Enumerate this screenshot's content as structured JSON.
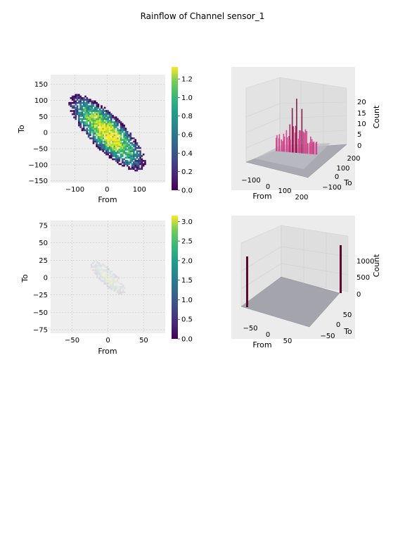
{
  "title": "Rainflow of Channel sensor_1",
  "chart_data": [
    {
      "type": "heatmap",
      "panel": "top-left",
      "xlabel": "From",
      "ylabel": "To",
      "xlim": [
        -175,
        180
      ],
      "ylim": [
        -155,
        180
      ],
      "xticks": [
        -100,
        0,
        100
      ],
      "yticks": [
        -150,
        -100,
        -50,
        0,
        50,
        100,
        150
      ],
      "grid": true,
      "colormap": "viridis",
      "colorbar": {
        "min": 0.0,
        "max": 1.33,
        "ticks": [
          "0.0",
          "0.2",
          "0.4",
          "0.6",
          "0.8",
          "1.0",
          "1.2"
        ]
      },
      "distribution": {
        "center": [
          0,
          0
        ],
        "diagonal_from": [
          -100,
          100
        ],
        "diagonal_to": [
          100,
          -100
        ],
        "cell": 5
      }
    },
    {
      "type": "surface3d",
      "panel": "top-right",
      "xlabel": "From",
      "ylabel": "To",
      "zlabel": "Count",
      "xticks": [
        -100,
        0,
        100,
        200
      ],
      "yticks": [
        -100,
        0,
        100,
        200
      ],
      "zticks": [
        0,
        5,
        10,
        15,
        20
      ],
      "zmax": 22
    },
    {
      "type": "heatmap",
      "panel": "bottom-left",
      "xlabel": "From",
      "ylabel": "To",
      "xlim": [
        -80,
        80
      ],
      "ylim": [
        -80,
        82
      ],
      "xticks": [
        -50,
        0,
        50
      ],
      "yticks": [
        -75,
        -50,
        -25,
        0,
        25,
        50,
        75
      ],
      "grid": true,
      "colormap": "viridis",
      "colorbar": {
        "min": 0.0,
        "max": 3.15,
        "ticks": [
          "0.0",
          "0.5",
          "1.0",
          "1.5",
          "2.0",
          "2.5",
          "3.0"
        ]
      },
      "distribution": {
        "center": [
          0,
          0
        ],
        "diagonal_from": [
          -20,
          20
        ],
        "diagonal_to": [
          20,
          -20
        ],
        "cell": 2,
        "faint": true
      }
    },
    {
      "type": "surface3d",
      "panel": "bottom-right",
      "xlabel": "From",
      "ylabel": "To",
      "zlabel": "Count",
      "xticks": [
        -50,
        0,
        50
      ],
      "yticks": [
        -50,
        0,
        50
      ],
      "zticks": [
        0,
        500,
        1000
      ],
      "zmax": 1400
    }
  ]
}
